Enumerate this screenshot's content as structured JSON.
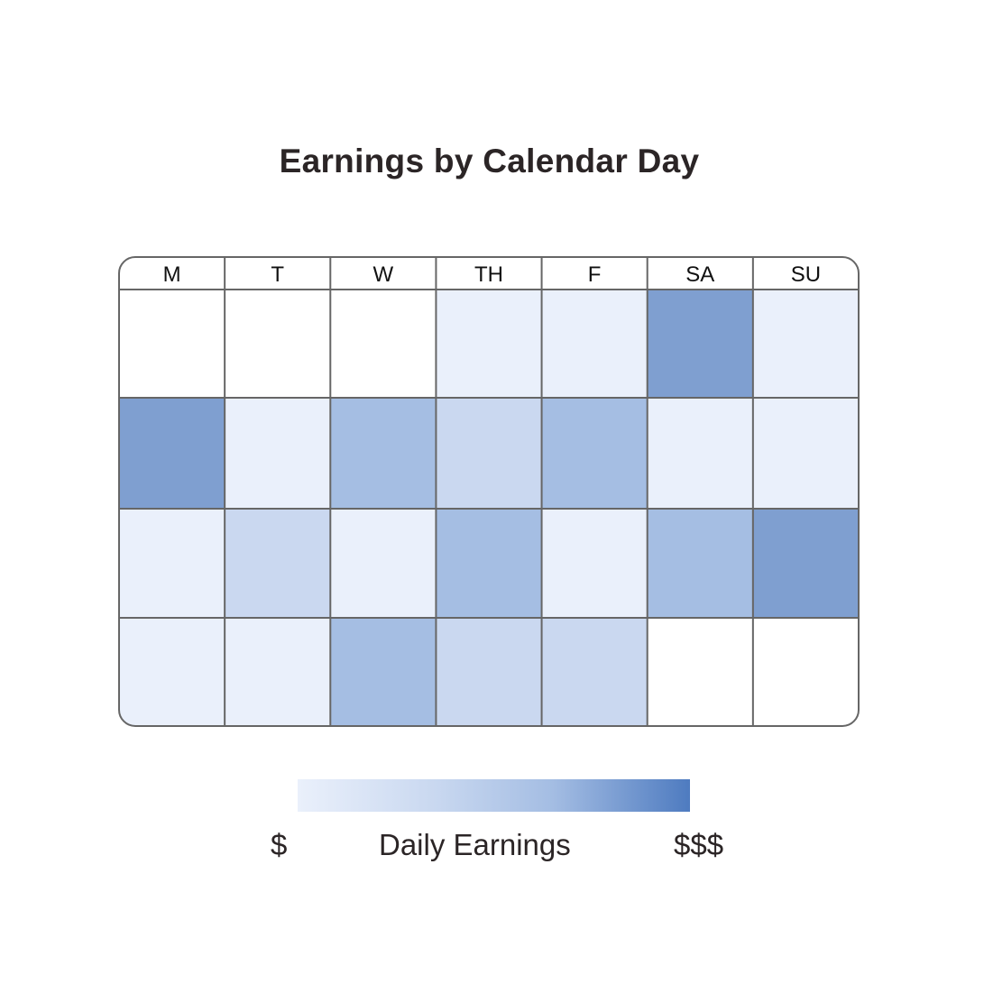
{
  "title": "Earnings by Calendar Day",
  "legend": {
    "min_label": "$",
    "title": "Daily Earnings",
    "max_label": "$$$",
    "colors": [
      "#eaf0fb",
      "#c9d8f0",
      "#a4bde3",
      "#4e7bc0"
    ]
  },
  "chart_data": {
    "type": "heatmap",
    "title": "Earnings by Calendar Day",
    "columns": [
      "M",
      "T",
      "W",
      "TH",
      "F",
      "SA",
      "SU"
    ],
    "scale": "0 = no day, 1 = lowest ($), 4 = highest ($$$)",
    "values": [
      [
        0,
        0,
        0,
        1,
        1,
        4,
        1
      ],
      [
        4,
        1,
        3,
        2,
        3,
        1,
        1
      ],
      [
        1,
        2,
        1,
        3,
        1,
        3,
        4
      ],
      [
        1,
        1,
        3,
        2,
        2,
        0,
        0
      ]
    ],
    "level_colors": [
      "#ffffff",
      "#eaf0fb",
      "#cad8f0",
      "#a5bee3",
      "#7f9fd0"
    ],
    "grid_color": "#666666"
  }
}
